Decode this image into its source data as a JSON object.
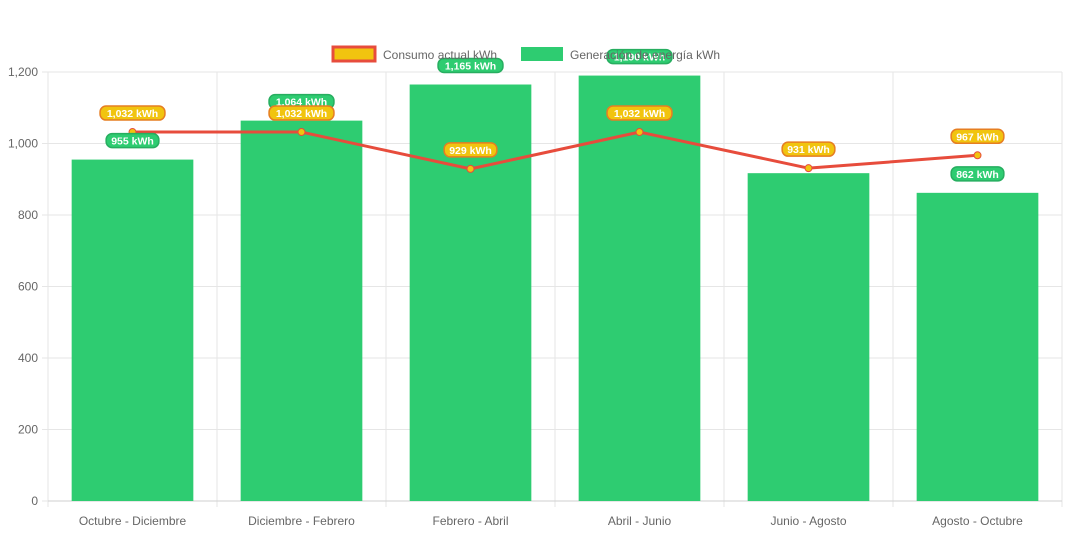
{
  "chart_data": {
    "type": "bar",
    "categories": [
      "Octubre - Diciembre",
      "Diciembre - Febrero",
      "Febrero - Abril",
      "Abril - Junio",
      "Junio - Agosto",
      "Agosto - Octubre"
    ],
    "series": [
      {
        "name": "Generación de energía kWh",
        "type": "bar",
        "color": "#2ecc71",
        "values": [
          955,
          1064,
          1165,
          1190,
          917,
          862
        ],
        "labels": [
          "955 kWh",
          "1.064 kWh",
          "1,165 kWh",
          "1,190 kWh",
          "",
          "862 kWh"
        ]
      },
      {
        "name": "Consumo actual kWh",
        "type": "line",
        "color": "#e74c3c",
        "point_color": "#f1c40f",
        "values": [
          1032,
          1032,
          929,
          1032,
          931,
          967
        ],
        "labels": [
          "1,032 kWh",
          "1,032 kWh",
          "929 kWh",
          "1,032 kWh",
          "931 kWh",
          "967 kWh"
        ]
      }
    ],
    "ylim": [
      0,
      1200
    ],
    "yticks": [
      "0",
      "200",
      "400",
      "600",
      "800",
      "1,000",
      "1,200"
    ],
    "ytick_values": [
      0,
      200,
      400,
      600,
      800,
      1000,
      1200
    ],
    "grid": true,
    "legend": "top-center"
  }
}
